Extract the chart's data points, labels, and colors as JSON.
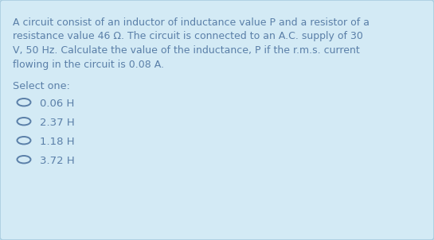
{
  "background_color": "#d3eaf5",
  "border_color": "#aacde0",
  "text_color": "#5a7fa8",
  "question_lines": [
    "A circuit consist of an inductor of inductance value P and a resistor of a",
    "resistance value 46 Ω. The circuit is connected to an A.C. supply of 30",
    "V, 50 Hz. Calculate the value of the inductance, P if the r.m.s. current",
    "flowing in the circuit is 0.08 A."
  ],
  "select_one_label": "Select one:",
  "options": [
    "0.06 H",
    "2.37 H",
    "1.18 H",
    "3.72 H"
  ],
  "font_size_question": 9.0,
  "font_size_options": 9.5,
  "font_size_select": 9.2
}
